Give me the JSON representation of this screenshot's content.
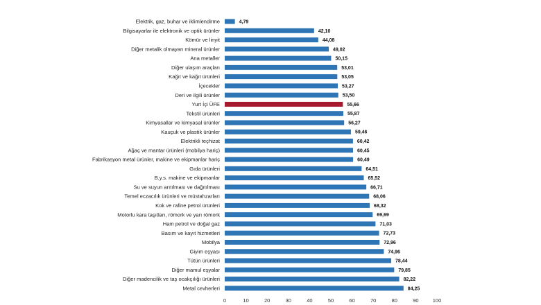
{
  "chart_data": {
    "type": "bar",
    "orientation": "horizontal",
    "categories": [
      "Elektrik, gaz, buhar ve iklimlendirme",
      "Bilgisayarlar ile elektronik ve optik ürünler",
      "Kömür ve linyit",
      "Diğer metalik olmayan mineral ürünler",
      "Ana metaller",
      "Diğer ulaşım araçları",
      "Kağıt ve kağıt ürünleri",
      "İçecekler",
      "Deri ve ilgili ürünler",
      "Yurt İçi ÜFE",
      "Tekstil ürünleri",
      "Kimyasallar ve kimyasal ürünler",
      "Kauçuk ve plastik ürünler",
      "Elektrikli teçhizat",
      "Ağaç ve mantar ürünleri (mobilya hariç)",
      "Fabrikasyon metal ürünler, makine ve ekipmanlar hariç",
      "Gıda ürünleri",
      "B.y.s. makine ve ekipmanlar",
      "Su ve suyun arıtılması ve dağıtılması",
      "Temel eczacılık ürünleri ve müstahzarları",
      "Kok ve rafine petrol ürünleri",
      "Motorlu kara taşıtları, römork ve yarı römork",
      "Ham petrol ve doğal gaz",
      "Basım ve kayıt hizmetleri",
      "Mobilya",
      "Giyim eşyası",
      "Tütün ürünleri",
      "Diğer mamul eşyalar",
      "Diğer madencilik ve taş ocakçılığı ürünleri",
      "Metal cevherleri"
    ],
    "values": [
      4.79,
      42.1,
      44.08,
      49.02,
      50.15,
      53.01,
      53.05,
      53.27,
      53.5,
      55.66,
      55.87,
      56.27,
      59.46,
      60.42,
      60.45,
      60.49,
      64.51,
      65.52,
      66.71,
      68.06,
      68.32,
      69.69,
      71.03,
      72.73,
      72.96,
      74.96,
      78.44,
      79.85,
      82.22,
      84.25
    ],
    "value_labels": [
      "4,79",
      "42,10",
      "44,08",
      "49,02",
      "50,15",
      "53,01",
      "53,05",
      "53,27",
      "53,50",
      "55,66",
      "55,87",
      "56,27",
      "59,46",
      "60,42",
      "60,45",
      "60,49",
      "64,51",
      "65,52",
      "66,71",
      "68,06",
      "68,32",
      "69,69",
      "71,03",
      "72,73",
      "72,96",
      "74,96",
      "78,44",
      "79,85",
      "82,22",
      "84,25"
    ],
    "highlight_category": "Yurt İçi ÜFE",
    "colors": {
      "bar": "#2e75b6",
      "highlight": "#a6192e"
    },
    "xlim": [
      0,
      100
    ],
    "xticks": [
      0,
      10,
      20,
      30,
      40,
      50,
      60,
      70,
      80,
      90,
      100
    ],
    "grid": false,
    "title": "",
    "xlabel": "",
    "ylabel": ""
  }
}
